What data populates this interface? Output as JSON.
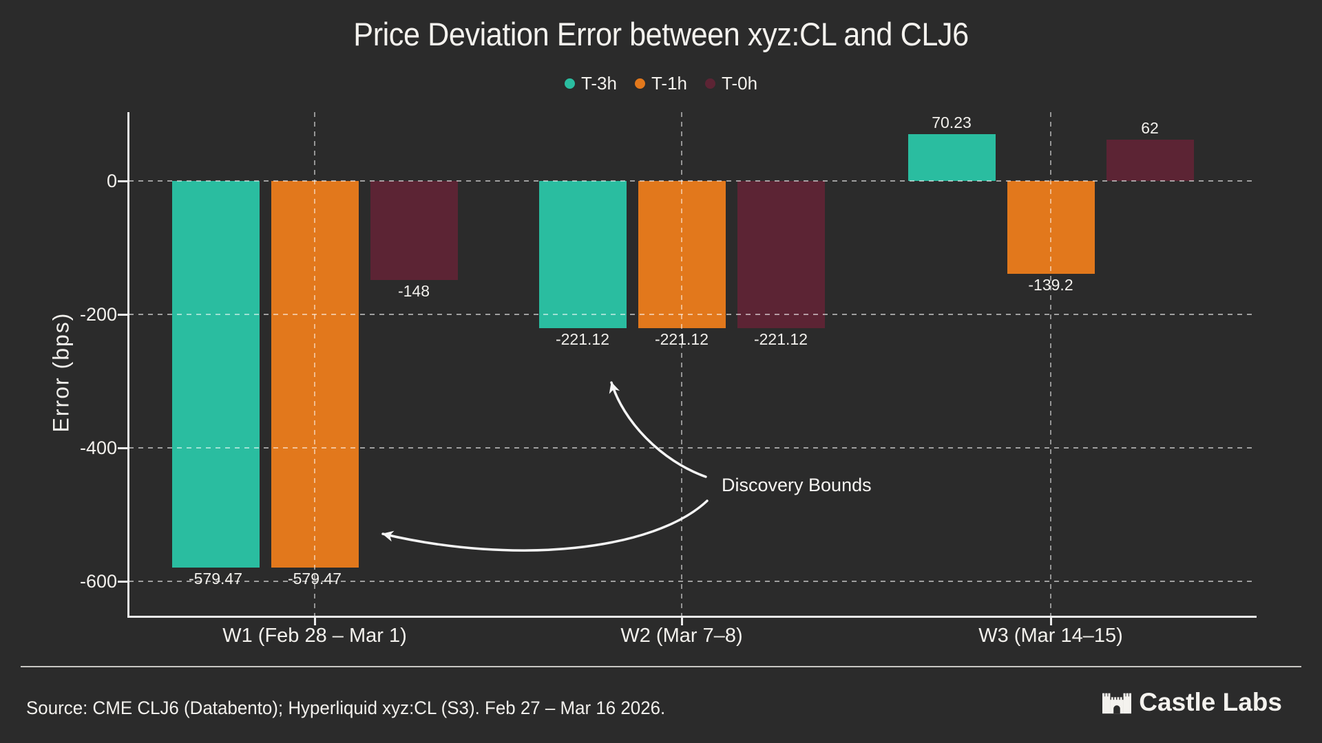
{
  "chart_data": {
    "type": "bar",
    "title": "Price Deviation Error between xyz:CL and CLJ6",
    "xlabel": "",
    "ylabel": "Error (bps)",
    "categories": [
      "W1 (Feb 28 – Mar 1)",
      "W2 (Mar 7–8)",
      "W3 (Mar 14–15)"
    ],
    "series": [
      {
        "name": "T-3h",
        "color": "#2abda0",
        "values": [
          -579.47,
          -221.12,
          70.23
        ],
        "labels": [
          "-579.47",
          "-221.12",
          "70.23"
        ]
      },
      {
        "name": "T-1h",
        "color": "#e2781c",
        "values": [
          -579.47,
          -221.12,
          -139.2
        ],
        "labels": [
          "-579.47",
          "-221.12",
          "-139.2"
        ]
      },
      {
        "name": "T-0h",
        "color": "#5c2434",
        "values": [
          -148,
          -221.12,
          62
        ],
        "labels": [
          "-148",
          "-221.12",
          "62"
        ]
      }
    ],
    "yticks": [
      0,
      -200,
      -400,
      -600
    ],
    "ylim": [
      -655,
      103
    ],
    "grid": true,
    "legend_position": "top"
  },
  "annotation": {
    "text": "Discovery Bounds"
  },
  "footer": {
    "source": "Source: CME CLJ6 (Databento); Hyperliquid xyz:CL (S3). Feb 27 – Mar 16 2026.",
    "brand": "Castle Labs"
  },
  "colors": {
    "background": "#2b2b2b",
    "text": "#f2f0ec",
    "axis": "#ececec",
    "grid": "rgba(255,255,255,0.5)"
  }
}
